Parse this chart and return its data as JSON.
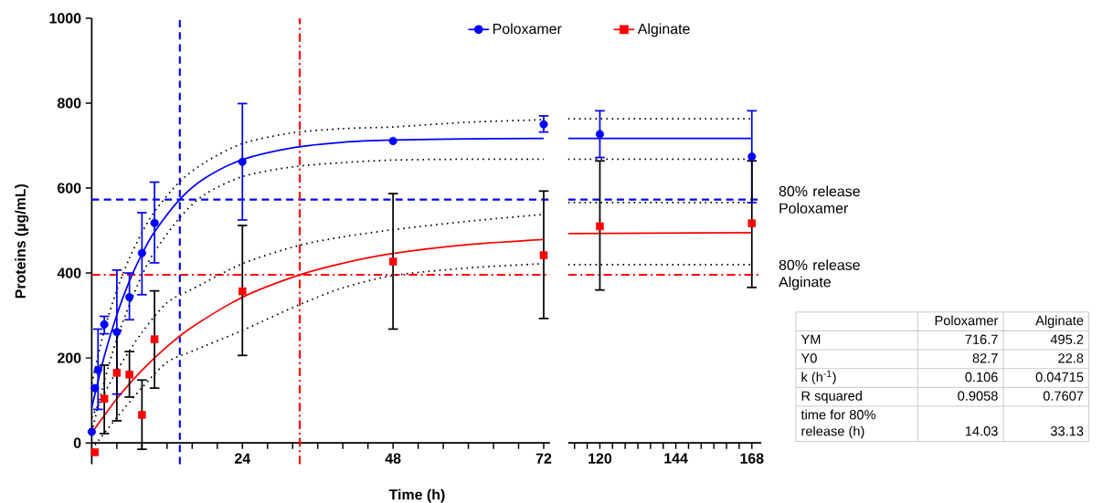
{
  "chart_data": [
    {
      "type": "scatter",
      "xlabel": "Time (h)",
      "ylabel": "Proteins (µg/mL)",
      "xlim": [
        0,
        73
      ],
      "ylim": [
        -50,
        1000
      ],
      "xticks": [
        {
          "value": 0,
          "label": null
        },
        {
          "value": 4,
          "label": null
        },
        {
          "value": 8,
          "label": null
        },
        {
          "value": 12,
          "label": null
        },
        {
          "value": 16,
          "label": null
        },
        {
          "value": 20,
          "label": null
        },
        24,
        {
          "value": 28,
          "label": null
        },
        {
          "value": 32,
          "label": null
        },
        {
          "value": 36,
          "label": null
        },
        {
          "value": 40,
          "label": null
        },
        {
          "value": 44,
          "label": null
        },
        48,
        {
          "value": 52,
          "label": null
        },
        {
          "value": 56,
          "label": null
        },
        {
          "value": 60,
          "label": null
        },
        {
          "value": 64,
          "label": null
        },
        {
          "value": 68,
          "label": null
        },
        72
      ],
      "yticks": [
        0,
        200,
        400,
        600,
        800,
        1000
      ],
      "legend": "top right",
      "series": [
        {
          "name": "Poloxamer",
          "type": "scatter",
          "marker": "circle",
          "color": "#0000ff",
          "x": [
            0,
            0.5,
            1,
            2,
            4,
            6,
            8,
            10,
            24,
            48,
            72
          ],
          "values": [
            26,
            129,
            172,
            279,
            261,
            343,
            447,
            518,
            662,
            711,
            750
          ],
          "errors": [
            null,
            null,
            [
              79,
              268
            ],
            [
              257,
              298
            ],
            [
              115,
              407
            ],
            [
              290,
              400
            ],
            [
              349,
              542
            ],
            [
              424,
              614
            ],
            [
              525,
              799
            ],
            null,
            [
              732,
              770
            ]
          ]
        },
        {
          "name": "Alginate",
          "type": "scatter",
          "marker": "square",
          "color": "#ff0000",
          "x": [
            0.5,
            2,
            4,
            6,
            8,
            10,
            24,
            48,
            72
          ],
          "values": [
            -22,
            104,
            165,
            161,
            66,
            244,
            357,
            427,
            442
          ],
          "errors": [
            null,
            [
              22,
              183
            ],
            [
              52,
              265
            ],
            [
              108,
              215
            ],
            [
              -15,
              148
            ],
            [
              129,
              358
            ],
            [
              206,
              512
            ],
            [
              268,
              587
            ],
            [
              293,
              593
            ]
          ]
        },
        {
          "type": "line",
          "color": "#0000ff",
          "x": [
            0,
            2,
            4,
            6,
            8,
            10,
            14,
            18,
            24,
            32,
            40,
            48,
            60,
            72
          ],
          "values": [
            83,
            204,
            302,
            381,
            445,
            497,
            573,
            623,
            667,
            695,
            708,
            713,
            716,
            717
          ]
        },
        {
          "type": "line",
          "color": "#ff0000",
          "x": [
            0,
            4,
            8,
            12,
            16,
            24,
            33,
            40,
            48,
            60,
            72
          ],
          "values": [
            23,
            104,
            171,
            227,
            273,
            343,
            395,
            423,
            446,
            467,
            479
          ]
        },
        {
          "type": "line",
          "color": "#000000",
          "line_style": "dotted",
          "x": [
            0,
            2,
            4,
            6,
            8,
            10,
            14,
            18,
            24,
            32,
            40,
            48,
            60,
            72
          ],
          "values": [
            140,
            265,
            360,
            435,
            495,
            545,
            615,
            660,
            705,
            730,
            740,
            744,
            755,
            761
          ]
        },
        {
          "type": "line",
          "color": "#000000",
          "line_style": "dotted",
          "x": [
            0,
            2,
            4,
            6,
            8,
            10,
            14,
            18,
            24,
            32,
            40,
            48,
            60,
            72
          ],
          "values": [
            25,
            145,
            245,
            325,
            395,
            450,
            530,
            585,
            627,
            650,
            660,
            666,
            668,
            668
          ]
        },
        {
          "type": "line",
          "color": "#000000",
          "line_style": "dotted",
          "x": [
            0,
            4,
            8,
            12,
            16,
            24,
            33,
            40,
            48,
            60,
            72
          ],
          "values": [
            60,
            170,
            260,
            330,
            362,
            422,
            465,
            485,
            502,
            522,
            538
          ]
        },
        {
          "type": "line",
          "color": "#000000",
          "line_style": "dotted",
          "x": [
            0,
            4,
            8,
            12,
            16,
            24,
            33,
            40,
            48,
            60,
            72
          ],
          "values": [
            -15,
            60,
            130,
            190,
            216,
            265,
            325,
            365,
            394,
            412,
            422
          ]
        }
      ],
      "ref_lines": [
        {
          "axis": "y",
          "value": 573,
          "color": "#0000ff",
          "line_style": "dashed"
        },
        {
          "axis": "y",
          "value": 396,
          "color": "#ff0000",
          "line_style": "dashdot"
        },
        {
          "axis": "x",
          "value": 14.03,
          "color": "#0000ff",
          "line_style": "dashed"
        },
        {
          "axis": "x",
          "value": 33.13,
          "color": "#ff0000",
          "line_style": "dashdot"
        }
      ]
    },
    {
      "type": "scatter",
      "xlim": [
        110,
        171
      ],
      "ylim": [
        0,
        1000
      ],
      "yticks": [
        0,
        200,
        400,
        600,
        800,
        1000
      ],
      "tick_labels": "x",
      "xticks": [
        {
          "value": 112,
          "label": null
        },
        {
          "value": 116,
          "label": null
        },
        120,
        {
          "value": 124,
          "label": null
        },
        {
          "value": 128,
          "label": null
        },
        {
          "value": 132,
          "label": null
        },
        {
          "value": 136,
          "label": null
        },
        {
          "value": 140,
          "label": null
        },
        144,
        {
          "value": 148,
          "label": null
        },
        {
          "value": 152,
          "label": null
        },
        {
          "value": 156,
          "label": null
        },
        {
          "value": 160,
          "label": null
        },
        {
          "value": 164,
          "label": null
        },
        168
      ],
      "series": [
        {
          "type": "scatter",
          "marker": "circle",
          "color": "#0000ff",
          "x": [
            120,
            168
          ],
          "values": [
            727,
            674
          ],
          "errors": [
            [
              672,
              782
            ],
            [
              566,
              782
            ]
          ]
        },
        {
          "type": "scatter",
          "marker": "square",
          "color": "#ff0000",
          "x": [
            120,
            168
          ],
          "values": [
            510,
            517
          ],
          "errors": [
            [
              360,
              664
            ],
            [
              366,
              664
            ]
          ]
        },
        {
          "type": "line",
          "color": "#0000ff",
          "x": [
            110,
            168
          ],
          "values": [
            717,
            717
          ]
        },
        {
          "type": "line",
          "color": "#ff0000",
          "x": [
            110,
            168
          ],
          "values": [
            493,
            495
          ]
        },
        {
          "type": "line",
          "color": "#000000",
          "line_style": "dotted",
          "x": [
            110,
            168
          ],
          "values": [
            763,
            763
          ]
        },
        {
          "type": "line",
          "color": "#000000",
          "line_style": "dotted",
          "x": [
            110,
            168
          ],
          "values": [
            668,
            668
          ]
        },
        {
          "type": "line",
          "color": "#000000",
          "line_style": "dotted",
          "x": [
            110,
            168
          ],
          "values": [
            566,
            566
          ]
        },
        {
          "type": "line",
          "color": "#000000",
          "line_style": "dotted",
          "x": [
            110,
            168
          ],
          "values": [
            420,
            420
          ]
        }
      ],
      "ref_lines": [
        {
          "axis": "y",
          "value": 573,
          "color": "#0000ff",
          "line_style": "dashed",
          "label": "80% release Poloxamer"
        },
        {
          "axis": "y",
          "value": 396,
          "color": "#ff0000",
          "line_style": "dashdot",
          "label": "80% release Alginate"
        }
      ]
    },
    {
      "type": "other",
      "categories": [
        "Poloxamer",
        "Alginate"
      ],
      "y_categories": [
        "YM",
        "Y0",
        "k (h$^{-1}$)",
        "R squared",
        "time for 80% release (h)"
      ],
      "cell_labels": [
        [
          "716.7",
          "495.2"
        ],
        [
          "82.7",
          "22.8"
        ],
        [
          "0.106",
          "0.04715"
        ],
        [
          "0.9058",
          "0.7607"
        ],
        [
          "14.03",
          "33.13"
        ]
      ]
    }
  ]
}
